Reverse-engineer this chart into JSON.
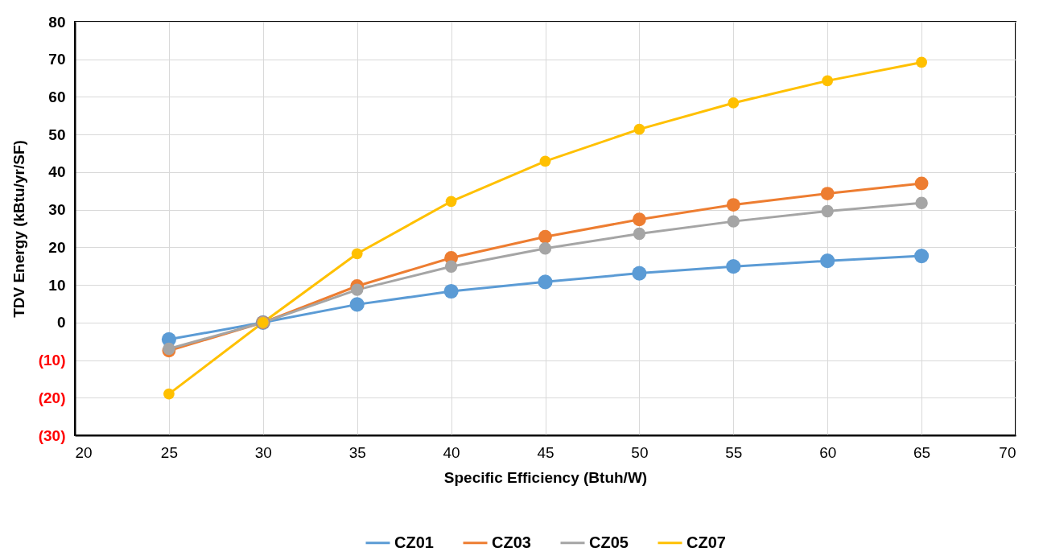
{
  "chart_data": {
    "type": "line",
    "xlabel": "Specific Efficiency (Btuh/W)",
    "ylabel": "TDV Energy (kBtu/yr/SF)",
    "x": [
      25,
      30,
      35,
      40,
      45,
      50,
      55,
      60,
      65
    ],
    "series": [
      {
        "name": "CZ01",
        "color": "#5b9bd5",
        "values": [
          -4.5,
          0,
          4.8,
          8.3,
          10.8,
          13.1,
          14.9,
          16.4,
          17.7
        ]
      },
      {
        "name": "CZ03",
        "color": "#ed7d31",
        "values": [
          -7.5,
          0,
          9.7,
          17.2,
          22.8,
          27.4,
          31.3,
          34.3,
          37.0
        ]
      },
      {
        "name": "CZ05",
        "color": "#a5a5a5",
        "values": [
          -7,
          0,
          8.7,
          14.9,
          19.7,
          23.6,
          26.9,
          29.6,
          31.8
        ]
      },
      {
        "name": "CZ07",
        "color": "#ffc000",
        "values": [
          -19,
          0,
          18.3,
          32.2,
          42.9,
          51.4,
          58.4,
          64.3,
          69.2
        ]
      }
    ],
    "xlim": [
      20,
      70
    ],
    "xticks": [
      20,
      25,
      30,
      35,
      40,
      45,
      50,
      55,
      60,
      65,
      70
    ],
    "ylim": [
      -30,
      80
    ],
    "yticks": [
      {
        "value": -30,
        "label": "(30)"
      },
      {
        "value": -20,
        "label": "(20)"
      },
      {
        "value": -10,
        "label": "(10)"
      },
      0,
      10,
      20,
      30,
      40,
      50,
      60,
      70,
      80
    ],
    "grid": true,
    "legend": "bottom",
    "marker": "circle",
    "line_style": "solid"
  }
}
